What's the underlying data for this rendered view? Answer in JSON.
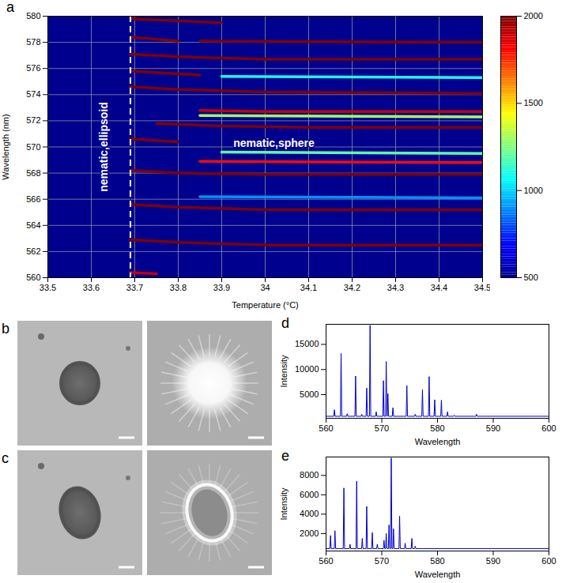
{
  "chart_data": [
    {
      "type": "heatmap",
      "panel": "a",
      "x_label": "Temperature (°C)",
      "y_label": "Wavelength (nm)",
      "xlim": [
        33.5,
        34.5
      ],
      "ylim": [
        560,
        580
      ],
      "xticks": [
        33.5,
        33.6,
        33.7,
        33.8,
        33.9,
        34,
        34.1,
        34.2,
        34.3,
        34.4,
        34.5
      ],
      "yticks": [
        560,
        562,
        564,
        566,
        568,
        570,
        572,
        574,
        576,
        578,
        580
      ],
      "grid": true,
      "colorbar": {
        "lim": [
          500,
          2000
        ],
        "ticks": [
          500,
          1000,
          1500,
          2000
        ]
      },
      "vline": 33.69,
      "annotations": [
        {
          "text": "nematic,ellipsoid",
          "x": 33.63,
          "y": 570
        },
        {
          "text": "nematic,sphere",
          "x": 34.02,
          "y": 570.3
        }
      ],
      "modes": [
        {
          "x": [
            33.69,
            33.75
          ],
          "y": [
            560.4,
            560.3
          ],
          "intensity": 1900
        },
        {
          "x": [
            33.69,
            33.8,
            34.0,
            34.5
          ],
          "y": [
            562.9,
            562.7,
            562.5,
            562.5
          ],
          "intensity": 2000
        },
        {
          "x": [
            33.69,
            33.8,
            34.0,
            34.5
          ],
          "y": [
            565.6,
            565.4,
            565.2,
            565.2
          ],
          "intensity": 2000
        },
        {
          "x": [
            33.85,
            34.5
          ],
          "y": [
            566.2,
            566.1
          ],
          "intensity": 900
        },
        {
          "x": [
            33.69,
            33.8,
            34.0,
            34.5
          ],
          "y": [
            568.2,
            568.0,
            567.9,
            567.9
          ],
          "intensity": 2000
        },
        {
          "x": [
            33.85,
            34.5
          ],
          "y": [
            568.9,
            568.8
          ],
          "intensity": 1800
        },
        {
          "x": [
            33.9,
            34.5
          ],
          "y": [
            569.6,
            569.5
          ],
          "intensity": 1200
        },
        {
          "x": [
            33.69,
            33.8
          ],
          "y": [
            570.6,
            570.4
          ],
          "intensity": 2000
        },
        {
          "x": [
            33.75,
            33.9,
            34.1,
            34.5
          ],
          "y": [
            571.8,
            571.6,
            571.5,
            571.5
          ],
          "intensity": 2000
        },
        {
          "x": [
            33.85,
            34.5
          ],
          "y": [
            572.4,
            572.3
          ],
          "intensity": 1300
        },
        {
          "x": [
            33.85,
            34.0,
            34.5
          ],
          "y": [
            572.8,
            572.7,
            572.7
          ],
          "intensity": 1900
        },
        {
          "x": [
            33.69,
            33.8,
            34.0,
            34.5
          ],
          "y": [
            574.6,
            574.4,
            574.2,
            574.1
          ],
          "intensity": 2000
        },
        {
          "x": [
            33.9,
            34.5
          ],
          "y": [
            575.4,
            575.3
          ],
          "intensity": 1100
        },
        {
          "x": [
            33.69,
            33.85
          ],
          "y": [
            575.8,
            575.5
          ],
          "intensity": 2000
        },
        {
          "x": [
            33.69,
            33.8,
            34.0,
            34.5
          ],
          "y": [
            577.1,
            576.9,
            576.7,
            576.7
          ],
          "intensity": 2000
        },
        {
          "x": [
            33.69,
            33.8
          ],
          "y": [
            578.4,
            578.1
          ],
          "intensity": 2000
        },
        {
          "x": [
            33.85,
            34.5
          ],
          "y": [
            578.1,
            578.0
          ],
          "intensity": 2000
        },
        {
          "x": [
            33.69,
            33.9
          ],
          "y": [
            579.8,
            579.5
          ],
          "intensity": 2000
        }
      ]
    },
    {
      "type": "line",
      "panel": "d",
      "x_label": "Wavelength",
      "y_label": "Intensity",
      "xlim": [
        560,
        600
      ],
      "ylim": [
        300,
        19000
      ],
      "xticks": [
        560,
        570,
        580,
        590,
        600
      ],
      "yticks": [
        5000,
        10000,
        15000
      ],
      "color": "#0000cc",
      "x": [
        560,
        561.38,
        561.5,
        561.62,
        562.58,
        562.7,
        562.82,
        563.68,
        563.8,
        563.92,
        565.18,
        565.3,
        565.42,
        566.28,
        566.4,
        566.52,
        567.18,
        567.3,
        567.42,
        567.78,
        567.9,
        568.02,
        568.88,
        569.0,
        569.12,
        570.18,
        570.3,
        570.42,
        570.68,
        570.8,
        570.92,
        570.98,
        571.1,
        571.22,
        571.88,
        572.0,
        572.12,
        574.38,
        574.5,
        574.62,
        575.88,
        576.0,
        576.12,
        577.18,
        577.3,
        577.42,
        578.38,
        578.5,
        578.62,
        579.38,
        579.5,
        579.62,
        580.58,
        580.7,
        580.82,
        581.68,
        581.8,
        581.92,
        582.88,
        583.0,
        583.12,
        586.88,
        587.0,
        587.12,
        600
      ],
      "values": [
        700,
        700,
        2000,
        700,
        700,
        13200,
        700,
        700,
        1200,
        700,
        700,
        8700,
        700,
        700,
        1100,
        700,
        700,
        6300,
        700,
        700,
        18800,
        700,
        700,
        1600,
        700,
        700,
        7800,
        700,
        700,
        11600,
        700,
        700,
        5200,
        700,
        700,
        2400,
        700,
        700,
        6800,
        700,
        700,
        1100,
        700,
        700,
        6000,
        700,
        700,
        8600,
        700,
        700,
        4000,
        700,
        700,
        3900,
        700,
        700,
        1600,
        700,
        700,
        900,
        700,
        700,
        1100,
        700,
        700
      ]
    },
    {
      "type": "line",
      "panel": "e",
      "x_label": "Wavelength",
      "y_label": "Intensity",
      "xlim": [
        560,
        600
      ],
      "ylim": [
        200,
        9900
      ],
      "xticks": [
        560,
        570,
        580,
        590,
        600
      ],
      "yticks": [
        2000,
        4000,
        6000,
        8000
      ],
      "color": "#0000cc",
      "x": [
        560,
        560.68,
        560.8,
        560.92,
        561.48,
        561.6,
        561.72,
        563.08,
        563.2,
        563.32,
        564.18,
        564.3,
        564.42,
        565.38,
        565.5,
        565.62,
        566.38,
        566.5,
        566.62,
        567.18,
        567.3,
        567.42,
        568.18,
        568.3,
        568.42,
        569.08,
        569.2,
        569.32,
        570.28,
        570.4,
        570.52,
        570.68,
        570.8,
        570.92,
        571.18,
        571.3,
        571.42,
        571.58,
        571.7,
        571.82,
        571.98,
        572.1,
        572.22,
        573.08,
        573.2,
        573.32,
        574.08,
        574.2,
        574.32,
        575.28,
        575.4,
        575.52,
        575.88,
        576.0,
        576.12,
        600
      ],
      "values": [
        450,
        450,
        1800,
        450,
        450,
        2300,
        450,
        450,
        6700,
        450,
        450,
        900,
        450,
        450,
        7400,
        450,
        450,
        1500,
        450,
        450,
        4800,
        450,
        450,
        2100,
        450,
        450,
        900,
        450,
        450,
        1300,
        450,
        450,
        2000,
        450,
        450,
        2900,
        450,
        450,
        9800,
        450,
        450,
        2500,
        450,
        450,
        3800,
        450,
        450,
        1000,
        450,
        450,
        1500,
        450,
        450,
        700,
        450,
        450
      ]
    }
  ],
  "images": [
    {
      "panel": "b"
    },
    {
      "panel": "c"
    }
  ]
}
